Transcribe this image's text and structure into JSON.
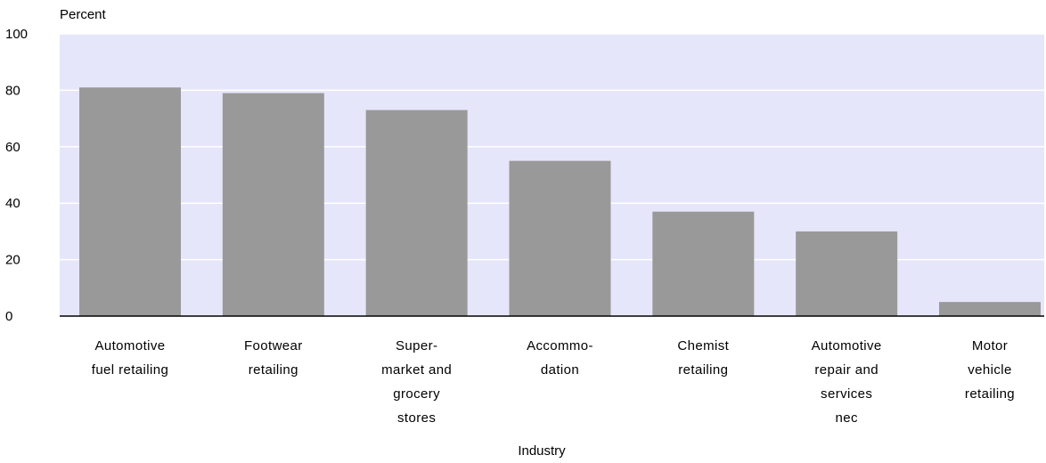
{
  "chart_data": {
    "type": "bar",
    "title": "",
    "ylabel": "Percent",
    "xlabel": "Industry",
    "ylim": [
      0,
      100
    ],
    "yticks": [
      0,
      20,
      40,
      60,
      80,
      100
    ],
    "grid": true,
    "categories": [
      [
        "Automotive",
        "fuel retailing"
      ],
      [
        "Footwear",
        "retailing"
      ],
      [
        "Super-",
        "market and",
        "grocery",
        "stores"
      ],
      [
        "Accommo-",
        "dation"
      ],
      [
        "Chemist",
        "retailing"
      ],
      [
        "Automotive",
        "repair and",
        "services",
        "nec"
      ],
      [
        "Motor",
        "vehicle",
        "retailing"
      ]
    ],
    "values": [
      81,
      79,
      73,
      55,
      37,
      30,
      5
    ],
    "colors": {
      "plot_background": "#e6e6fa",
      "bar": "#999999",
      "gridline": "#ffffff",
      "axis": "#000000"
    }
  }
}
